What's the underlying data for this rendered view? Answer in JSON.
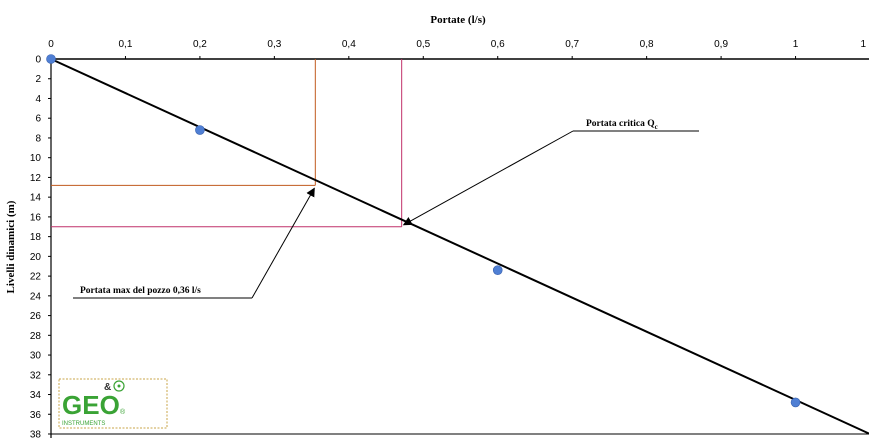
{
  "chart_data": {
    "type": "scatter",
    "title": "",
    "xlabel": "Portate (l/s)",
    "ylabel": "Livelli dinamici (m)",
    "x_ticks": [
      "0",
      "0,1",
      "0,2",
      "0,3",
      "0,4",
      "0,5",
      "0,6",
      "0,7",
      "0,8",
      "0,9",
      "1",
      "1"
    ],
    "y_ticks": [
      "0",
      "2",
      "4",
      "6",
      "8",
      "10",
      "12",
      "14",
      "16",
      "18",
      "20",
      "22",
      "24",
      "26",
      "28",
      "30",
      "32",
      "34",
      "36",
      "38"
    ],
    "xlim": [
      0,
      1.1
    ],
    "ylim": [
      0,
      38
    ],
    "y_inverted": true,
    "x_axis_position": "top",
    "grid": false,
    "series": [
      {
        "points": [
          {
            "x": 0,
            "y": 0
          },
          {
            "x": 0.2,
            "y": 7.2
          },
          {
            "x": 0.6,
            "y": 21.4
          },
          {
            "x": 1.0,
            "y": 34.8
          }
        ],
        "color": "#4f7fd4"
      }
    ],
    "trendline": {
      "x": [
        0,
        1.1
      ],
      "y": [
        0,
        38
      ],
      "color": "#000000"
    },
    "reference_lines": [
      {
        "x": 0.355,
        "y": 12.8,
        "color": "#c05a1e"
      },
      {
        "x": 0.471,
        "y": 17.0,
        "color": "#c0306a"
      }
    ],
    "annotations": [
      {
        "text": "Portata critica Q",
        "subscript": "c",
        "target_x": 0.471,
        "target_y": 17.0
      },
      {
        "text": "Portata max del pozzo 0,36 l/s",
        "target_x": 0.355,
        "target_y": 12.8
      }
    ]
  },
  "logo": {
    "text": "GEO",
    "ampersand": "&",
    "subtitle": "INSTRUMENTS"
  },
  "colors": {
    "point": "#4f7fd4",
    "line": "#000000",
    "ref_max": "#c05a1e",
    "ref_critical": "#c0306a",
    "logo_green": "#3aa335",
    "logo_border": "#c9a64a"
  }
}
